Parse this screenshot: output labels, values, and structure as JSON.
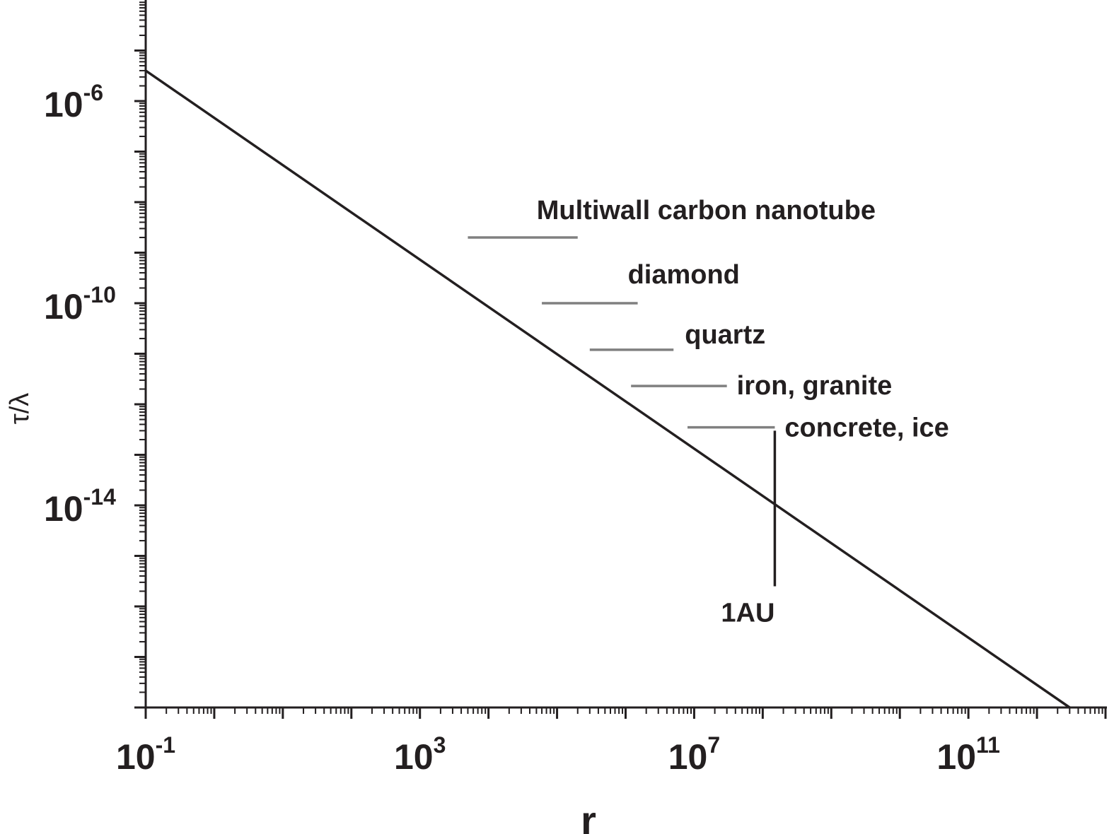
{
  "chart_data": {
    "type": "line",
    "title": "",
    "xlabel": "r",
    "ylabel": "τ/λ",
    "xscale": "log",
    "yscale": "log",
    "xlim": [
      0.1,
      10000000000000
    ],
    "ylim": [
      1e-18,
      0.0001
    ],
    "grid": false,
    "x_tick_labels": [
      {
        "base": "10",
        "exp": "-1",
        "value": 0.1
      },
      {
        "base": "10",
        "exp": "3",
        "value": 1000
      },
      {
        "base": "10",
        "exp": "7",
        "value": 10000000
      },
      {
        "base": "10",
        "exp": "11",
        "value": 100000000000
      }
    ],
    "y_tick_labels": [
      {
        "base": "10",
        "exp": "-6",
        "value": 1e-06
      },
      {
        "base": "10",
        "exp": "-10",
        "value": 1e-10
      },
      {
        "base": "10",
        "exp": "-14",
        "value": 1e-14
      }
    ],
    "series": [
      {
        "x": [
          0.1,
          3000000000000
        ],
        "y": [
          4e-06,
          1e-18
        ],
        "color": "#231f20"
      }
    ],
    "annotations": [
      {
        "text": "Multiwall carbon nanotube",
        "x_start": 5000,
        "x_end": 200000,
        "y": 2e-09,
        "color": "#808080"
      },
      {
        "text": "diamond",
        "x_start": 60000,
        "x_end": 1500000,
        "y": 1e-10,
        "color": "#808080"
      },
      {
        "text": "quartz",
        "x_start": 300000,
        "x_end": 5000000,
        "y": 1.2e-11,
        "color": "#808080"
      },
      {
        "text": "iron, granite",
        "x_start": 1200000,
        "x_end": 30000000,
        "y": 2.3e-12,
        "color": "#808080"
      },
      {
        "text": "concrete, ice",
        "x_start": 8000000,
        "x_end": 150000000,
        "y": 3.5e-13,
        "color": "#808080"
      }
    ],
    "markers": [
      {
        "text": "1AU",
        "x": 150000000,
        "y_top": 3e-13,
        "y_bottom": 2.5e-16
      }
    ]
  }
}
